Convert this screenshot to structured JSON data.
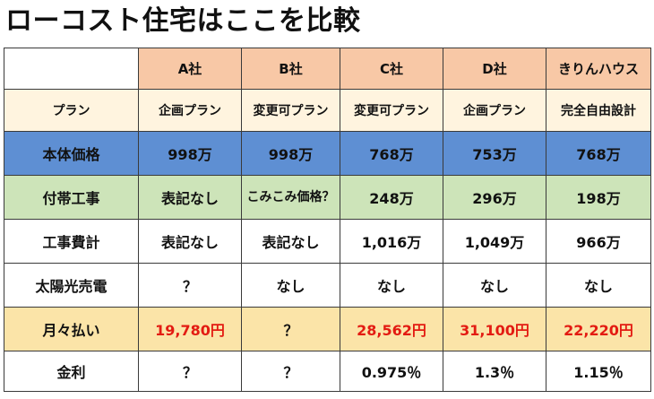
{
  "title": "ローコスト住宅はここを比較",
  "columns": [
    "A社",
    "B社",
    "C社",
    "D社",
    "きりんハウス"
  ],
  "rows": {
    "plan": {
      "label": "プラン",
      "values": [
        "企画プラン",
        "変更可プラン",
        "変更可プラン",
        "企画プラン",
        "完全自由設計"
      ]
    },
    "main": {
      "label": "本体価格",
      "values": [
        "998万",
        "998万",
        "768万",
        "753万",
        "768万"
      ]
    },
    "opt": {
      "label": "付帯工事",
      "values": [
        "表記なし",
        "こみこみ価格？",
        "248万",
        "296万",
        "198万"
      ]
    },
    "total": {
      "label": "工事費計",
      "values": [
        "表記なし",
        "表記なし",
        "1,016万",
        "1,049万",
        "966万"
      ]
    },
    "solar": {
      "label": "太陽光売電",
      "values": [
        "？",
        "なし",
        "なし",
        "なし",
        "なし"
      ]
    },
    "month": {
      "label": "月々払い",
      "values": [
        "19,780円",
        "？",
        "28,562円",
        "31,100円",
        "22,220円"
      ]
    },
    "rate": {
      "label": "金利",
      "values": [
        "？",
        "？",
        "0.975％",
        "1.3％",
        "1.15％"
      ]
    }
  },
  "colors": {
    "header": "#f8c8a6",
    "plan_row": "#fff4df",
    "price_row": "#5e8fd3",
    "option_row": "#cde4b9",
    "monthly_row": "#fbe4a8",
    "highlight_text": "#e31b12"
  }
}
